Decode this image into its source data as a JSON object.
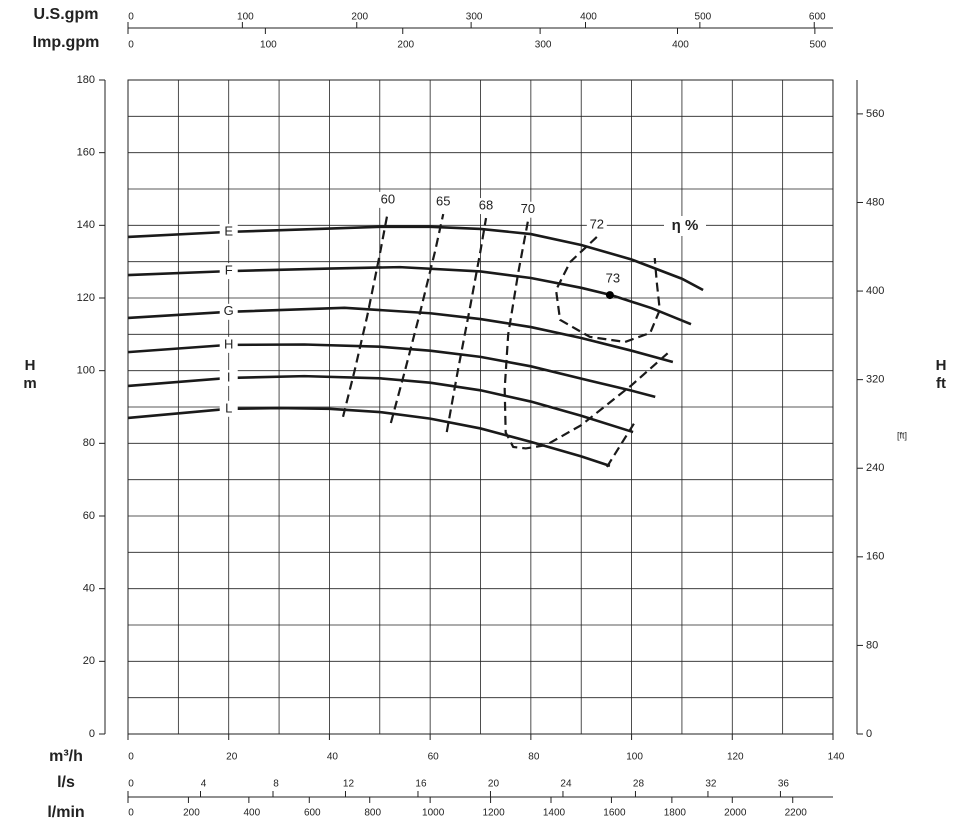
{
  "chart_data": {
    "type": "line",
    "x_axes": [
      {
        "label": "U.S.gpm",
        "xlim": [
          0,
          616.4
        ],
        "xticks": [
          0,
          100,
          200,
          300,
          400,
          500,
          600
        ]
      },
      {
        "label": "Imp.gpm",
        "xlim": [
          0,
          513.2
        ],
        "xticks": [
          0,
          100,
          200,
          300,
          400,
          500
        ]
      },
      {
        "label": "m³/h",
        "xlim": [
          0,
          140
        ],
        "xticks": [
          0,
          20,
          40,
          60,
          80,
          100,
          120,
          140
        ]
      },
      {
        "label": "l/s",
        "xlim": [
          0,
          38.9
        ],
        "xticks": [
          0,
          4,
          8,
          12,
          16,
          20,
          24,
          28,
          32,
          36
        ]
      },
      {
        "label": "l/min",
        "xlim": [
          0,
          2333.3
        ],
        "xticks": [
          0,
          200,
          400,
          600,
          800,
          1000,
          1200,
          1400,
          1600,
          1800,
          2000,
          2200
        ]
      }
    ],
    "xgrid": [
      0,
      10,
      20,
      30,
      40,
      50,
      60,
      70,
      80,
      90,
      100,
      110,
      120,
      130,
      140
    ],
    "ylabel": "H",
    "yunit": "m",
    "ylim": [
      0,
      180
    ],
    "yticks": [
      0,
      20,
      40,
      60,
      80,
      100,
      120,
      140,
      160,
      180
    ],
    "ygrid": [
      0,
      10,
      20,
      30,
      40,
      50,
      60,
      70,
      80,
      90,
      100,
      110,
      120,
      130,
      140,
      150,
      160,
      170,
      180
    ],
    "y2label": "H",
    "y2unit": "ft",
    "y2note": "[ft]",
    "y2lim": [
      0,
      590.6
    ],
    "y2ticks": [
      0,
      80,
      160,
      240,
      320,
      400,
      480,
      560
    ],
    "efficiency_label": "η %",
    "grid": true,
    "series": [
      {
        "name": "E",
        "color": "#1a1a1a",
        "dash": false,
        "x": [
          0,
          20,
          40,
          50,
          60,
          70,
          80,
          90,
          100,
          110,
          114.2
        ],
        "values": [
          136.8,
          138.2,
          139.1,
          139.6,
          139.6,
          139,
          137.6,
          134.6,
          130.6,
          125.3,
          122.2
        ]
      },
      {
        "name": "F",
        "color": "#1a1a1a",
        "dash": false,
        "x": [
          0,
          20,
          40,
          54,
          70,
          80,
          90,
          96,
          104,
          111.8
        ],
        "values": [
          126.3,
          127.4,
          128.1,
          128.5,
          127.3,
          125.5,
          122.8,
          120.8,
          117.2,
          112.8
        ]
      },
      {
        "name": "G",
        "color": "#1a1a1a",
        "dash": false,
        "x": [
          0,
          20,
          43,
          60,
          70,
          80,
          90,
          100,
          108.2
        ],
        "values": [
          114.5,
          116.2,
          117.3,
          115.8,
          114.2,
          112,
          109,
          105.5,
          102.4
        ]
      },
      {
        "name": "H",
        "color": "#1a1a1a",
        "dash": false,
        "x": [
          0,
          20,
          35,
          50,
          60,
          70,
          80,
          90,
          100,
          104.7
        ],
        "values": [
          105.1,
          107.1,
          107.2,
          106.6,
          105.5,
          103.8,
          101.2,
          97.8,
          94.5,
          92.8
        ]
      },
      {
        "name": "I",
        "color": "#1a1a1a",
        "dash": false,
        "x": [
          0,
          20,
          35,
          50,
          60,
          70,
          80,
          90,
          100.3
        ],
        "values": [
          95.8,
          98,
          98.5,
          97.9,
          96.7,
          94.6,
          91.5,
          87.6,
          83.1
        ]
      },
      {
        "name": "L",
        "color": "#1a1a1a",
        "dash": false,
        "x": [
          0,
          20,
          30,
          40,
          50,
          60,
          70,
          80,
          90,
          95.7
        ],
        "values": [
          87,
          89.5,
          89.7,
          89.5,
          88.6,
          86.8,
          84.1,
          80.4,
          76.4,
          73.8
        ]
      },
      {
        "name": "60",
        "color": "#1a1a1a",
        "dash": true,
        "x": [
          42.7,
          45,
          47.5,
          50,
          51.6
        ],
        "values": [
          87.3,
          100,
          115,
          132,
          143.7
        ]
      },
      {
        "name": "65",
        "color": "#1a1a1a",
        "dash": true,
        "x": [
          52.2,
          55,
          58,
          61,
          62.6
        ],
        "values": [
          85.6,
          100,
          116,
          133,
          143.1
        ]
      },
      {
        "name": "68",
        "color": "#1a1a1a",
        "dash": true,
        "x": [
          63.3,
          65.5,
          68,
          70,
          71.1
        ],
        "values": [
          83.1,
          100,
          118,
          133,
          142
        ]
      },
      {
        "name": "70",
        "color": "#1a1a1a",
        "dash": true,
        "x": [
          79.4,
          77.5,
          75.5,
          74.8,
          75,
          76.5,
          79,
          83,
          90,
          100,
          107.9
        ],
        "values": [
          141,
          127,
          110,
          95,
          83,
          79,
          78.6,
          79.5,
          85,
          96,
          105.7
        ]
      },
      {
        "name": "72",
        "color": "#1a1a1a",
        "dash": true,
        "x": [
          93.1,
          87.8,
          85,
          85.8,
          91.7,
          98.7,
          103.7,
          105.6,
          105,
          104.6,
          null,
          95.1,
          100.9
        ],
        "values": [
          136.8,
          129.9,
          122.2,
          114,
          109.3,
          107.9,
          110.4,
          116.7,
          124.4,
          131,
          null,
          73.5,
          86.4
        ]
      },
      {
        "name": "73",
        "color": "#000000",
        "dash": false,
        "marker": true,
        "x": [
          95.7
        ],
        "values": [
          120.8
        ]
      }
    ]
  }
}
